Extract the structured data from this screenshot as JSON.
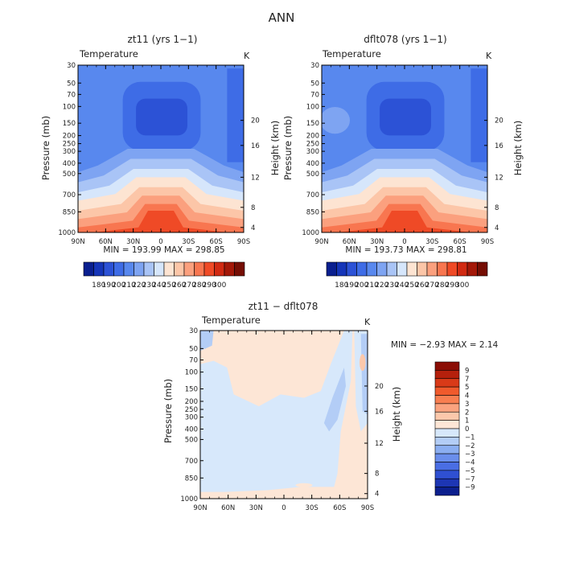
{
  "page_title": "ANN",
  "chart_data": [
    {
      "type": "heatmap",
      "title": "zt11 (yrs 1−1)",
      "subtitle_left": "Temperature",
      "subtitle_right": "K",
      "ylabel": "Pressure (mb)",
      "y2label": "Height (km)",
      "x_ticklabels": [
        "90N",
        "60N",
        "30N",
        "0",
        "30S",
        "60S",
        "90S"
      ],
      "y_ticklabels": [
        "30",
        "50",
        "70",
        "100",
        "150",
        "200",
        "250",
        "300",
        "400",
        "500",
        "700",
        "850",
        "1000"
      ],
      "y2_ticklabels": [
        "20",
        "16",
        "12",
        "8",
        "4"
      ],
      "minmax_text": "MIN = 193.99   MAX = 298.85",
      "colorbar_labels": [
        "180",
        "190",
        "200",
        "210",
        "220",
        "230",
        "240",
        "250",
        "260",
        "270",
        "280",
        "290",
        "300"
      ],
      "colorbar_colors": [
        "#0a1f8f",
        "#1535b8",
        "#2c52d6",
        "#3e6ce6",
        "#5888ee",
        "#7ea4f2",
        "#a9c4f6",
        "#d6e6fb",
        "#fde4d2",
        "#fcc6a8",
        "#fba07e",
        "#f87650",
        "#ef4a26",
        "#d12a12",
        "#a31808",
        "#750e04"
      ]
    },
    {
      "type": "heatmap",
      "title": "dflt078 (yrs 1−1)",
      "subtitle_left": "Temperature",
      "subtitle_right": "K",
      "ylabel": "Pressure (mb)",
      "y2label": "Height (km)",
      "x_ticklabels": [
        "90N",
        "60N",
        "30N",
        "0",
        "30S",
        "60S",
        "90S"
      ],
      "y_ticklabels": [
        "30",
        "50",
        "70",
        "100",
        "150",
        "200",
        "250",
        "300",
        "400",
        "500",
        "700",
        "850",
        "1000"
      ],
      "y2_ticklabels": [
        "20",
        "16",
        "12",
        "8",
        "4"
      ],
      "minmax_text": "MIN = 193.73   MAX = 298.81",
      "colorbar_labels": [
        "180",
        "190",
        "200",
        "210",
        "220",
        "230",
        "240",
        "250",
        "260",
        "270",
        "280",
        "290",
        "300"
      ],
      "colorbar_colors": [
        "#0a1f8f",
        "#1535b8",
        "#2c52d6",
        "#3e6ce6",
        "#5888ee",
        "#7ea4f2",
        "#a9c4f6",
        "#d6e6fb",
        "#fde4d2",
        "#fcc6a8",
        "#fba07e",
        "#f87650",
        "#ef4a26",
        "#d12a12",
        "#a31808",
        "#750e04"
      ]
    },
    {
      "type": "heatmap",
      "title": "zt11 − dflt078",
      "subtitle_left": "Temperature",
      "subtitle_right": "K",
      "ylabel": "Pressure (mb)",
      "y2label": "Height (km)",
      "x_ticklabels": [
        "90N",
        "60N",
        "30N",
        "0",
        "30S",
        "60S",
        "90S"
      ],
      "y_ticklabels": [
        "30",
        "50",
        "70",
        "100",
        "150",
        "200",
        "250",
        "300",
        "400",
        "500",
        "700",
        "850",
        "1000"
      ],
      "y2_ticklabels": [
        "20",
        "16",
        "12",
        "8",
        "4"
      ],
      "minmax_text": "MIN =   −2.93   MAX =     2.14",
      "colorbar_labels": [
        "9",
        "7",
        "5",
        "4",
        "3",
        "2",
        "1",
        "0",
        "−1",
        "−2",
        "−3",
        "−4",
        "−5",
        "−7",
        "−9"
      ],
      "colorbar_colors": [
        "#8b0d05",
        "#b5200c",
        "#d93a18",
        "#f05a2c",
        "#f87e50",
        "#fba37f",
        "#fcc8ab",
        "#fde6d6",
        "#d7e8fb",
        "#b3cdf6",
        "#8baef1",
        "#6a8eec",
        "#4a6ee4",
        "#2f50d2",
        "#1d36b4",
        "#0c1f8e"
      ]
    }
  ]
}
